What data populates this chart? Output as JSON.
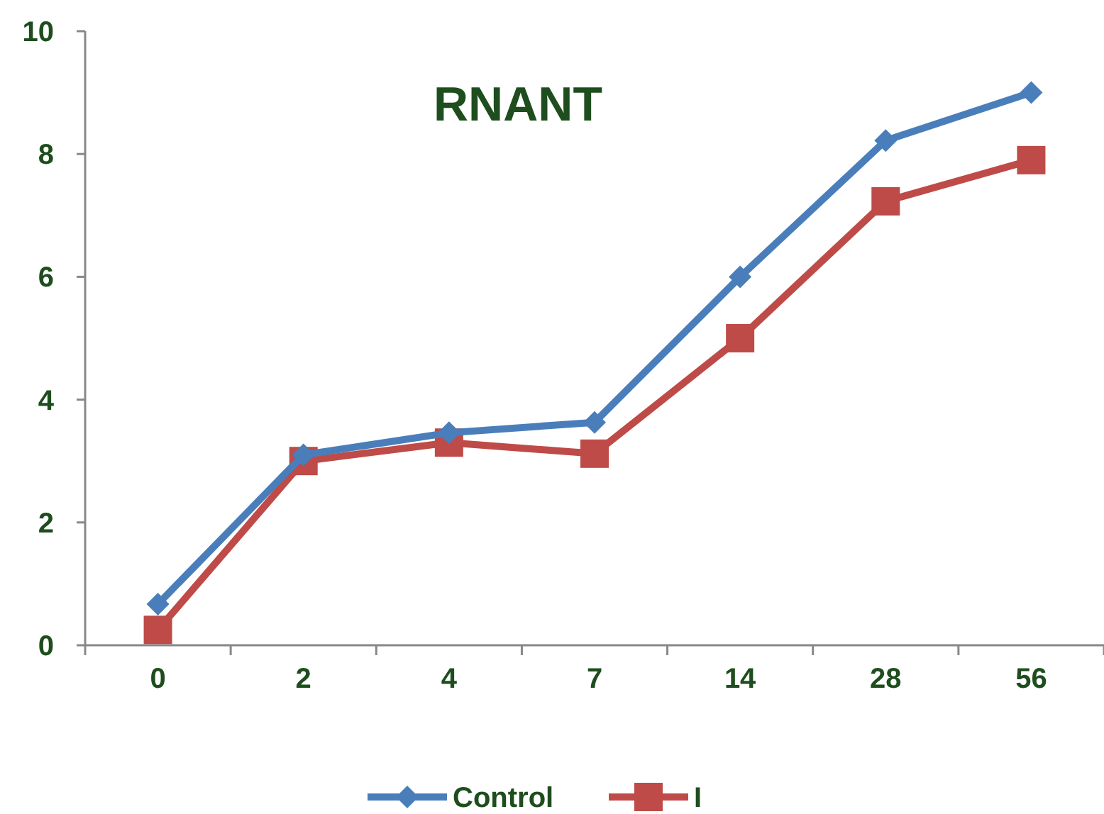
{
  "chart_data": {
    "type": "line",
    "title": "RNANT",
    "categories": [
      "0",
      "2",
      "4",
      "7",
      "14",
      "28",
      "56"
    ],
    "series": [
      {
        "name": "Control",
        "color": "#4a7ebb",
        "values": [
          0.67,
          3.1,
          3.46,
          3.63,
          6.0,
          8.22,
          9.0
        ],
        "marker": "diamond"
      },
      {
        "name": "I",
        "color": "#be4b48",
        "values": [
          0.25,
          3.0,
          3.3,
          3.12,
          5.0,
          7.23,
          7.9
        ],
        "marker": "square"
      }
    ],
    "ylim": [
      0,
      10
    ],
    "yticks": [
      0,
      2,
      4,
      6,
      8,
      10
    ],
    "grid": false,
    "legend": "bottom"
  }
}
